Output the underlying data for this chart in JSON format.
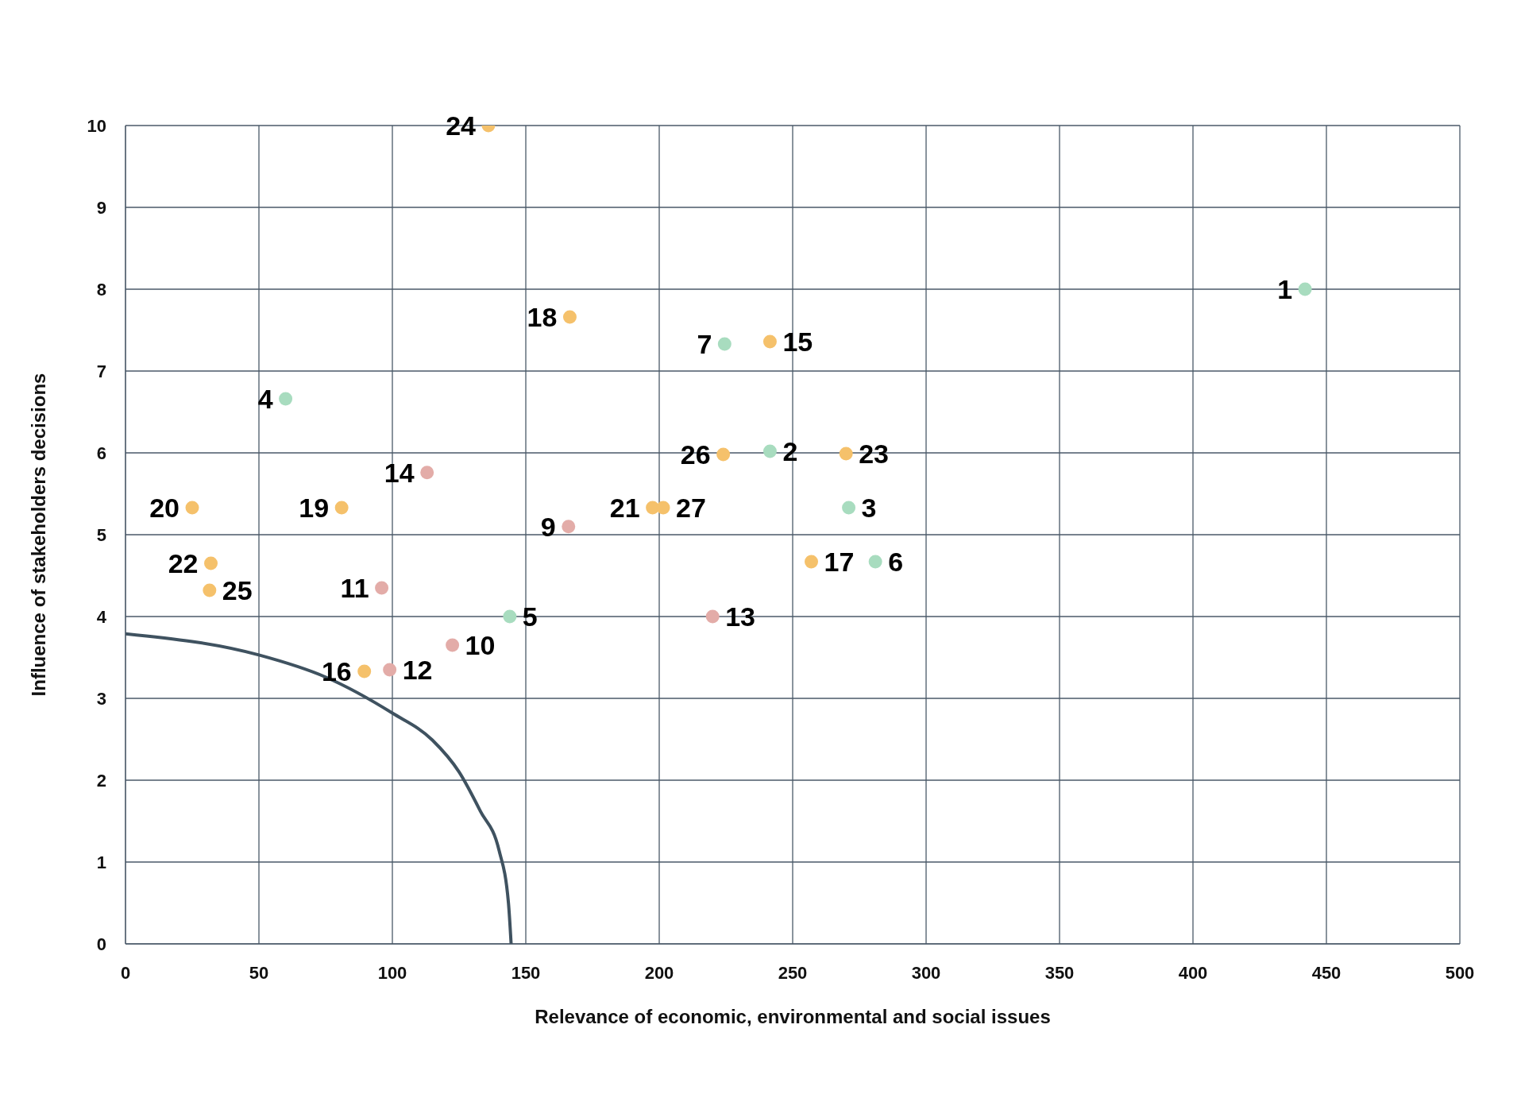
{
  "chart_data": {
    "type": "scatter",
    "xlabel": "Relevance of economic, environmental and social issues",
    "ylabel": "Influence of stakeholders decisions",
    "xlim": [
      0,
      500
    ],
    "xticks": [
      0,
      50,
      100,
      150,
      200,
      250,
      300,
      350,
      400,
      450,
      500
    ],
    "ylim": [
      0,
      10
    ],
    "yticks": [
      0,
      1,
      2,
      3,
      4,
      5,
      6,
      7,
      8,
      9,
      10
    ],
    "grid": true,
    "marker": "circle",
    "series": [
      {
        "color": "#a8dcbf",
        "x": [
          442,
          241.5,
          271,
          60,
          144,
          281,
          224.5
        ],
        "values": [
          8,
          6.02,
          5.33,
          6.66,
          4,
          4.67,
          7.33
        ]
      },
      {
        "color": "#e3aca8",
        "x": [
          166,
          122.5,
          96,
          99,
          220,
          113
        ],
        "values": [
          5.1,
          3.65,
          4.35,
          3.35,
          4,
          5.76
        ]
      },
      {
        "color": "#f5c16b",
        "x": [
          241.5,
          89.5,
          257,
          166.5,
          81,
          25,
          197.5,
          32,
          270,
          136,
          31.5,
          224,
          201.5
        ],
        "values": [
          7.36,
          3.33,
          4.67,
          7.66,
          5.33,
          5.33,
          5.33,
          4.65,
          5.99,
          10,
          4.32,
          5.98,
          5.33
        ]
      },
      {
        "type": "line",
        "color": "#3f5260",
        "marker": "none",
        "x": [
          0,
          50,
          75,
          100,
          115,
          125,
          133,
          140,
          143.5,
          144.5
        ],
        "values": [
          3.79,
          3.53,
          3.26,
          2.82,
          2.49,
          2.1,
          1.62,
          1.14,
          0.5,
          0
        ]
      }
    ],
    "annotations": [
      {
        "text": "1",
        "x": 442,
        "y": 8
      },
      {
        "text": "2",
        "x": 241.5,
        "y": 6.02
      },
      {
        "text": "3",
        "x": 271,
        "y": 5.33
      },
      {
        "text": "4",
        "x": 60,
        "y": 6.66
      },
      {
        "text": "5",
        "x": 144,
        "y": 4
      },
      {
        "text": "6",
        "x": 281,
        "y": 4.67
      },
      {
        "text": "7",
        "x": 224.5,
        "y": 7.33
      },
      {
        "text": "9",
        "x": 166,
        "y": 5.1
      },
      {
        "text": "10",
        "x": 122.5,
        "y": 3.65
      },
      {
        "text": "11",
        "x": 96,
        "y": 4.35
      },
      {
        "text": "12",
        "x": 99,
        "y": 3.35
      },
      {
        "text": "13",
        "x": 220,
        "y": 4
      },
      {
        "text": "14",
        "x": 113,
        "y": 5.76
      },
      {
        "text": "15",
        "x": 241.5,
        "y": 7.36
      },
      {
        "text": "16",
        "x": 89.5,
        "y": 3.33
      },
      {
        "text": "17",
        "x": 257,
        "y": 4.67
      },
      {
        "text": "18",
        "x": 166.5,
        "y": 7.66
      },
      {
        "text": "19",
        "x": 81,
        "y": 5.33
      },
      {
        "text": "20",
        "x": 25,
        "y": 5.33
      },
      {
        "text": "21",
        "x": 197.5,
        "y": 5.33
      },
      {
        "text": "22",
        "x": 32,
        "y": 4.65
      },
      {
        "text": "23",
        "x": 270,
        "y": 5.99
      },
      {
        "text": "24",
        "x": 136,
        "y": 10
      },
      {
        "text": "25",
        "x": 31.5,
        "y": 4.32
      },
      {
        "text": "26",
        "x": 224,
        "y": 5.98
      },
      {
        "text": "27",
        "x": 201.5,
        "y": 5.33
      }
    ]
  }
}
